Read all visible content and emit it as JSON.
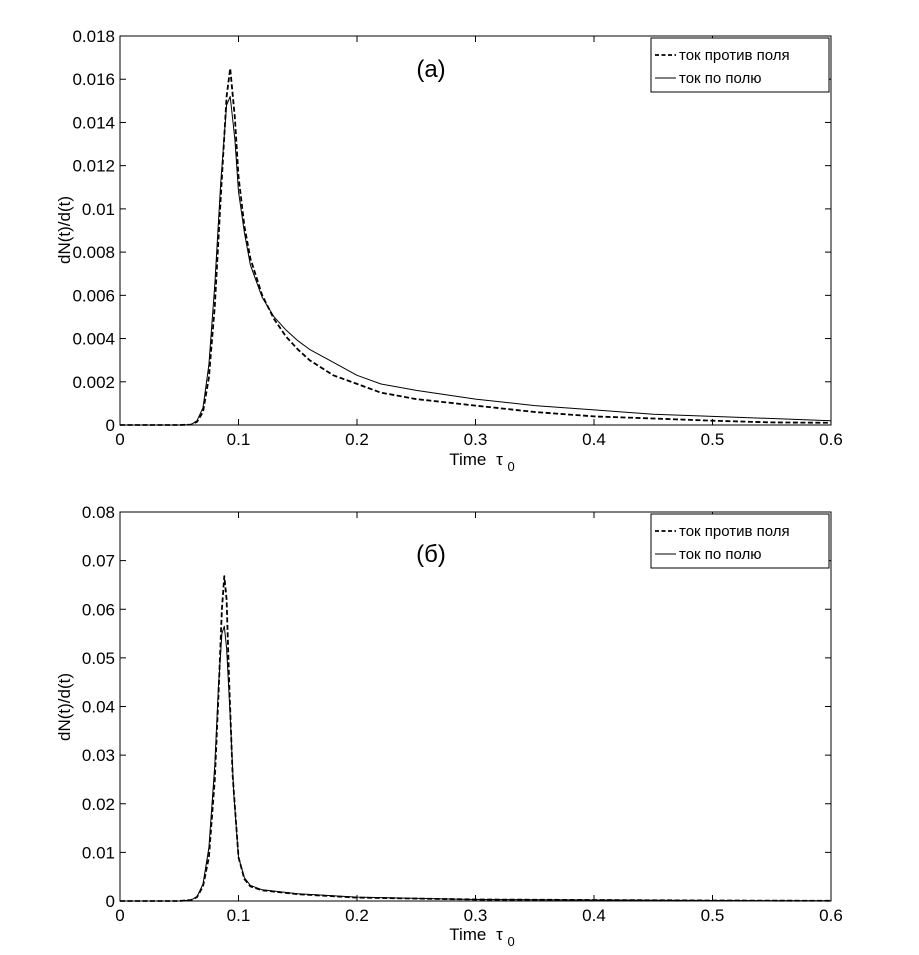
{
  "chart_data": [
    {
      "type": "line",
      "panel_label": "(a)",
      "xlabel": "Time",
      "xlabel_symbol": "τ",
      "xlabel_subscript": "0",
      "ylabel": "dN(t)/d(t)",
      "xlim": [
        0,
        0.6
      ],
      "ylim": [
        0,
        0.018
      ],
      "xticks": [
        "0",
        "0.1",
        "0.2",
        "0.3",
        "0.4",
        "0.5",
        "0.6"
      ],
      "yticks": [
        "0",
        "0.002",
        "0.004",
        "0.006",
        "0.008",
        "0.01",
        "0.012",
        "0.014",
        "0.016",
        "0.018"
      ],
      "grid": false,
      "legend_position": "top-right",
      "series": [
        {
          "name": "ток против поля",
          "style": "dashed",
          "x": [
            0,
            0.05,
            0.06,
            0.065,
            0.07,
            0.075,
            0.08,
            0.085,
            0.09,
            0.093,
            0.097,
            0.1,
            0.105,
            0.11,
            0.12,
            0.13,
            0.14,
            0.15,
            0.16,
            0.18,
            0.2,
            0.22,
            0.25,
            0.3,
            0.35,
            0.4,
            0.45,
            0.5,
            0.55,
            0.6
          ],
          "y": [
            0,
            0,
            2e-05,
            0.00015,
            0.0006,
            0.0022,
            0.0055,
            0.0105,
            0.0152,
            0.0165,
            0.0142,
            0.0115,
            0.0092,
            0.0077,
            0.006,
            0.0049,
            0.0041,
            0.0035,
            0.003,
            0.0023,
            0.0019,
            0.0015,
            0.0012,
            0.0009,
            0.0006,
            0.0004,
            0.0003,
            0.0002,
            0.00012,
            0.0001
          ]
        },
        {
          "name": "ток по полю",
          "style": "solid",
          "x": [
            0,
            0.05,
            0.06,
            0.065,
            0.07,
            0.075,
            0.08,
            0.085,
            0.09,
            0.093,
            0.097,
            0.1,
            0.105,
            0.11,
            0.12,
            0.13,
            0.14,
            0.15,
            0.16,
            0.18,
            0.2,
            0.22,
            0.25,
            0.3,
            0.35,
            0.4,
            0.45,
            0.5,
            0.55,
            0.6
          ],
          "y": [
            0,
            0,
            2e-05,
            0.0002,
            0.0008,
            0.0028,
            0.0065,
            0.0112,
            0.0148,
            0.0152,
            0.0132,
            0.0108,
            0.0089,
            0.0074,
            0.0059,
            0.005,
            0.0044,
            0.0039,
            0.0035,
            0.0029,
            0.0023,
            0.0019,
            0.0016,
            0.0012,
            0.0009,
            0.0007,
            0.0005,
            0.0004,
            0.0003,
            0.0002
          ]
        }
      ]
    },
    {
      "type": "line",
      "panel_label": "(б)",
      "xlabel": "Time",
      "xlabel_symbol": "τ",
      "xlabel_subscript": "0",
      "ylabel": "dN(t)/d(t)",
      "xlim": [
        0,
        0.6
      ],
      "ylim": [
        0,
        0.08
      ],
      "xticks": [
        "0",
        "0.1",
        "0.2",
        "0.3",
        "0.4",
        "0.5",
        "0.6"
      ],
      "yticks": [
        "0",
        "0.01",
        "0.02",
        "0.03",
        "0.04",
        "0.05",
        "0.06",
        "0.07",
        "0.08"
      ],
      "grid": false,
      "legend_position": "top-right",
      "series": [
        {
          "name": "ток против поля",
          "style": "dashed",
          "x": [
            0,
            0.05,
            0.06,
            0.065,
            0.07,
            0.075,
            0.08,
            0.083,
            0.086,
            0.088,
            0.09,
            0.092,
            0.095,
            0.1,
            0.105,
            0.11,
            0.12,
            0.15,
            0.2,
            0.3,
            0.4,
            0.5,
            0.6
          ],
          "y": [
            0,
            0,
            0.0002,
            0.0008,
            0.003,
            0.009,
            0.025,
            0.042,
            0.06,
            0.0668,
            0.062,
            0.046,
            0.026,
            0.009,
            0.0045,
            0.003,
            0.0022,
            0.0014,
            0.0007,
            0.0003,
            0.0002,
            0.0001,
            5e-05
          ]
        },
        {
          "name": "ток по полю",
          "style": "solid",
          "x": [
            0,
            0.05,
            0.06,
            0.065,
            0.07,
            0.075,
            0.08,
            0.083,
            0.086,
            0.088,
            0.09,
            0.093,
            0.096,
            0.1,
            0.105,
            0.11,
            0.12,
            0.15,
            0.2,
            0.3,
            0.4,
            0.5,
            0.6
          ],
          "y": [
            0,
            0,
            0.0002,
            0.0009,
            0.0035,
            0.011,
            0.028,
            0.044,
            0.055,
            0.0565,
            0.052,
            0.038,
            0.022,
            0.009,
            0.0048,
            0.0032,
            0.0023,
            0.0015,
            0.0008,
            0.0003,
            0.0002,
            0.0001,
            5e-05
          ]
        }
      ]
    }
  ]
}
